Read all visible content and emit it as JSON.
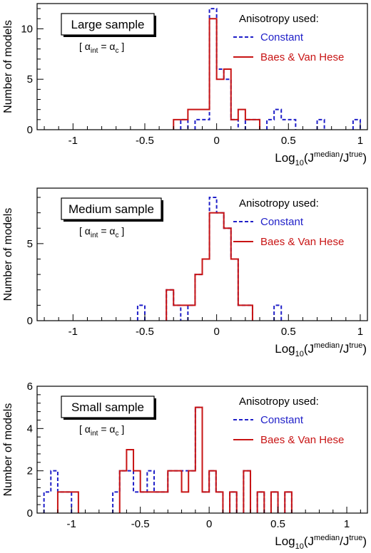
{
  "colors": {
    "constant": "#1f1fc8",
    "baes": "#c81414",
    "axis": "#000000",
    "background": "#ffffff"
  },
  "chart_data": [
    {
      "type": "histogram",
      "panel_title": "Large sample",
      "condition": "[ αint = αc ]",
      "legend_title": "Anisotropy used:",
      "legend_position": "top-right",
      "xlabel": "Log10(Jmedian/Jtrue)",
      "ylabel": "Number of models",
      "xlim": [
        -1.25,
        1.05
      ],
      "ylim": [
        0,
        12.5
      ],
      "x_ticks": [
        -1,
        -0.5,
        0,
        0.5,
        1
      ],
      "x_tick_labels": [
        "-1",
        "-0.5",
        "0",
        "0.5",
        "1"
      ],
      "y_ticks": [
        0,
        5,
        10
      ],
      "y_tick_labels": [
        "0",
        "5",
        "10"
      ],
      "bin_width": 0.05,
      "series": [
        {
          "name": "Constant",
          "style": "dashed",
          "bins": [
            [
              -0.25,
              1
            ],
            [
              -0.15,
              1
            ],
            [
              -0.1,
              1
            ],
            [
              -0.05,
              12
            ],
            [
              0.0,
              6
            ],
            [
              0.05,
              5
            ],
            [
              0.1,
              1
            ],
            [
              0.2,
              1
            ],
            [
              0.25,
              1
            ],
            [
              0.35,
              1
            ],
            [
              0.4,
              2
            ],
            [
              0.45,
              1
            ],
            [
              0.5,
              1
            ],
            [
              0.7,
              1
            ],
            [
              0.95,
              1
            ]
          ]
        },
        {
          "name": "Baes & Van Hese",
          "style": "solid",
          "bins": [
            [
              -0.3,
              1
            ],
            [
              -0.25,
              1
            ],
            [
              -0.2,
              2
            ],
            [
              -0.15,
              2
            ],
            [
              -0.1,
              2
            ],
            [
              -0.05,
              11
            ],
            [
              0.0,
              5
            ],
            [
              0.05,
              6
            ],
            [
              0.1,
              1
            ],
            [
              0.15,
              2
            ],
            [
              0.2,
              1
            ],
            [
              0.25,
              1
            ]
          ]
        }
      ]
    },
    {
      "type": "histogram",
      "panel_title": "Medium sample",
      "condition": "[ αint = αc ]",
      "legend_title": "Anisotropy used:",
      "legend_position": "top-right",
      "xlabel": "Log10(Jmedian/Jtrue)",
      "ylabel": "Number of models",
      "xlim": [
        -1.25,
        1.05
      ],
      "ylim": [
        0,
        8.6
      ],
      "x_ticks": [
        -1,
        -0.5,
        0,
        0.5,
        1
      ],
      "x_tick_labels": [
        "-1",
        "-0.5",
        "0",
        "0.5",
        "1"
      ],
      "y_ticks": [
        0,
        5
      ],
      "y_tick_labels": [
        "0",
        "5"
      ],
      "bin_width": 0.05,
      "series": [
        {
          "name": "Constant",
          "style": "dashed",
          "bins": [
            [
              -0.55,
              1
            ],
            [
              -0.35,
              2
            ],
            [
              -0.3,
              1
            ],
            [
              -0.2,
              1
            ],
            [
              -0.15,
              3
            ],
            [
              -0.1,
              4
            ],
            [
              -0.05,
              8
            ],
            [
              0.0,
              7
            ],
            [
              0.05,
              6
            ],
            [
              0.1,
              4
            ],
            [
              0.15,
              1
            ],
            [
              0.2,
              1
            ],
            [
              0.4,
              1
            ]
          ]
        },
        {
          "name": "Baes & Van Hese",
          "style": "solid",
          "bins": [
            [
              -0.35,
              2
            ],
            [
              -0.3,
              1
            ],
            [
              -0.25,
              1
            ],
            [
              -0.2,
              1
            ],
            [
              -0.15,
              3
            ],
            [
              -0.1,
              4
            ],
            [
              -0.05,
              7
            ],
            [
              0.0,
              7
            ],
            [
              0.05,
              6
            ],
            [
              0.1,
              4
            ],
            [
              0.15,
              1
            ],
            [
              0.2,
              1
            ]
          ]
        }
      ]
    },
    {
      "type": "histogram",
      "panel_title": "Small sample",
      "condition": "[ αint = αc ]",
      "legend_title": "Anisotropy used:",
      "legend_position": "top-right",
      "xlabel": "Log10(Jmedian/Jtrue)",
      "ylabel": "Number of models",
      "xlim": [
        -1.25,
        1.15
      ],
      "ylim": [
        0,
        6
      ],
      "x_ticks": [
        -1,
        -0.5,
        0,
        0.5,
        1
      ],
      "x_tick_labels": [
        "-1",
        "-0.5",
        "0",
        "0.5",
        "1"
      ],
      "y_ticks": [
        0,
        2,
        4,
        6
      ],
      "y_tick_labels": [
        "0",
        "2",
        "4",
        "6"
      ],
      "bin_width": 0.05,
      "series": [
        {
          "name": "Constant",
          "style": "dashed",
          "bins": [
            [
              -1.2,
              1
            ],
            [
              -1.15,
              2
            ],
            [
              -1.1,
              1
            ],
            [
              -1.05,
              1
            ],
            [
              -0.7,
              1
            ],
            [
              -0.65,
              2
            ],
            [
              -0.6,
              2
            ],
            [
              -0.55,
              1
            ],
            [
              -0.5,
              1
            ],
            [
              -0.45,
              2
            ],
            [
              -0.4,
              1
            ],
            [
              -0.35,
              1
            ],
            [
              -0.3,
              2
            ],
            [
              -0.25,
              2
            ],
            [
              -0.2,
              2
            ],
            [
              -0.15,
              2
            ],
            [
              -0.1,
              5
            ],
            [
              -0.05,
              1
            ],
            [
              0.0,
              2
            ],
            [
              0.05,
              1
            ],
            [
              0.15,
              1
            ],
            [
              0.25,
              2
            ],
            [
              0.35,
              1
            ],
            [
              0.45,
              1
            ],
            [
              0.55,
              1
            ]
          ]
        },
        {
          "name": "Baes & Van Hese",
          "style": "solid",
          "bins": [
            [
              -1.1,
              1
            ],
            [
              -1.05,
              1
            ],
            [
              -1.0,
              1
            ],
            [
              -0.65,
              2
            ],
            [
              -0.6,
              3
            ],
            [
              -0.55,
              2
            ],
            [
              -0.5,
              1
            ],
            [
              -0.45,
              1
            ],
            [
              -0.4,
              1
            ],
            [
              -0.35,
              1
            ],
            [
              -0.3,
              2
            ],
            [
              -0.25,
              2
            ],
            [
              -0.2,
              1
            ],
            [
              -0.15,
              2
            ],
            [
              -0.1,
              5
            ],
            [
              -0.05,
              1
            ],
            [
              0.0,
              2
            ],
            [
              0.05,
              1
            ],
            [
              0.15,
              1
            ],
            [
              0.25,
              2
            ],
            [
              0.35,
              1
            ],
            [
              0.45,
              1
            ],
            [
              0.55,
              1
            ]
          ]
        }
      ]
    }
  ]
}
